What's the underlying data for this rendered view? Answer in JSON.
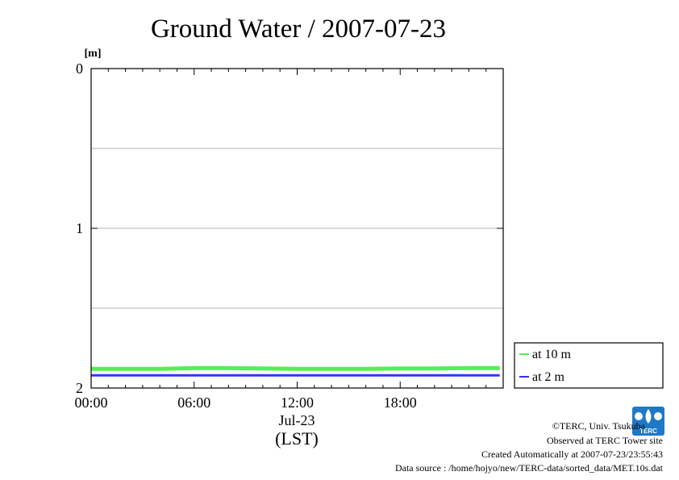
{
  "chart_data": {
    "type": "line",
    "title": "Ground Water / 2007-07-23",
    "ylabel": "[m]",
    "xlabel": "(LST)",
    "ylim": [
      0,
      2
    ],
    "y_inverted": true,
    "xlim": [
      0,
      24
    ],
    "x_ticks": [
      {
        "value": 0,
        "label": "00:00"
      },
      {
        "value": 6,
        "label": "06:00"
      },
      {
        "value": 12,
        "label": "12:00"
      },
      {
        "value": 18,
        "label": "18:00"
      }
    ],
    "x_date_label": "Jul-23",
    "y_ticks": [
      {
        "value": 0,
        "label": "0"
      },
      {
        "value": 1,
        "label": "1"
      },
      {
        "value": 2,
        "label": "2"
      }
    ],
    "grid_y": [
      0.5,
      1,
      1.5
    ],
    "legend_placement": "right-bottom",
    "series": [
      {
        "name": "at 10 m",
        "color": "#55ee55",
        "x": [
          0,
          2,
          4,
          6,
          8,
          10,
          12,
          14,
          16,
          18,
          20,
          22,
          23.8
        ],
        "values": [
          1.88,
          1.88,
          1.88,
          1.875,
          1.875,
          1.878,
          1.88,
          1.88,
          1.88,
          1.878,
          1.878,
          1.875,
          1.875
        ]
      },
      {
        "name": "at 2 m",
        "color": "#3333ff",
        "x": [
          0,
          2,
          4,
          6,
          8,
          10,
          12,
          14,
          16,
          18,
          20,
          22,
          23.8
        ],
        "values": [
          1.92,
          1.92,
          1.92,
          1.92,
          1.92,
          1.92,
          1.92,
          1.92,
          1.92,
          1.92,
          1.92,
          1.92,
          1.92
        ]
      }
    ]
  },
  "credits": {
    "copyright": "©TERC, Univ. Tsukuba",
    "observed": "Observed at TERC Tower site",
    "created": "Created Automatically at 2007-07-23/23:55:43",
    "source": "Data source : /home/hojyo/new/TERC-data/sorted_data/MET.10s.dat"
  },
  "logo": {
    "text": "TERC",
    "color": "#1e78c8"
  }
}
